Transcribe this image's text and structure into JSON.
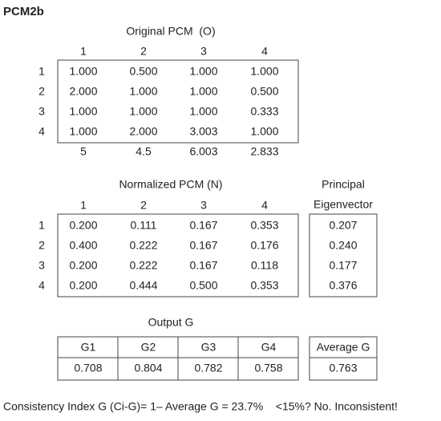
{
  "title": "PCM2b",
  "original": {
    "title": "Original PCM  (O)",
    "col_headers": [
      "1",
      "2",
      "3",
      "4"
    ],
    "row_headers": [
      "1",
      "2",
      "3",
      "4"
    ],
    "rows": [
      [
        "1.000",
        "0.500",
        "1.000",
        "1.000"
      ],
      [
        "2.000",
        "1.000",
        "1.000",
        "0.500"
      ],
      [
        "1.000",
        "1.000",
        "1.000",
        "0.333"
      ],
      [
        "1.000",
        "2.000",
        "3.003",
        "1.000"
      ]
    ],
    "column_sums": [
      "5",
      "4.5",
      "6.003",
      "2.833"
    ]
  },
  "normalized": {
    "title": "Normalized PCM (N)",
    "col_headers": [
      "1",
      "2",
      "3",
      "4"
    ],
    "row_headers": [
      "1",
      "2",
      "3",
      "4"
    ],
    "rows": [
      [
        "0.200",
        "0.111",
        "0.167",
        "0.353"
      ],
      [
        "0.400",
        "0.222",
        "0.167",
        "0.176"
      ],
      [
        "0.200",
        "0.222",
        "0.167",
        "0.118"
      ],
      [
        "0.200",
        "0.444",
        "0.500",
        "0.353"
      ]
    ]
  },
  "eigenvector": {
    "title_lines": [
      "Principal",
      "Eigenvector"
    ],
    "values": [
      "0.207",
      "0.240",
      "0.177",
      "0.376"
    ]
  },
  "output": {
    "title": "Output G",
    "headers": [
      "G1",
      "G2",
      "G3",
      "G4"
    ],
    "values": [
      "0.708",
      "0.804",
      "0.782",
      "0.758"
    ]
  },
  "average": {
    "header": "Average G",
    "value": "0.763"
  },
  "footer": "Consistency Index G (Ci-G)= 1– Average G = 23.7%    <15%? No. Inconsistent!"
}
